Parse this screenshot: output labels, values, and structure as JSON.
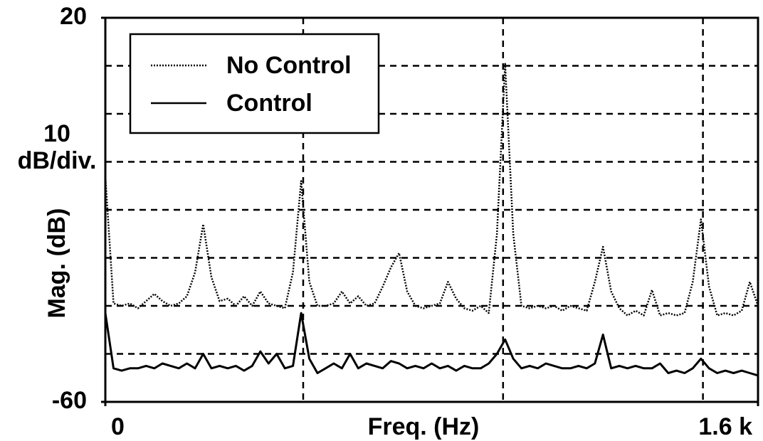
{
  "chart_data": {
    "type": "line",
    "xlabel": "Freq. (Hz)",
    "ylabel": "Mag. (dB)",
    "annotation": [
      "10",
      "dB/div."
    ],
    "xlim": [
      0,
      1600
    ],
    "xticks": [
      0,
      {
        "value": 1600,
        "label": "1.6 k"
      }
    ],
    "xgrid": [
      485,
      975,
      1465
    ],
    "ylim": [
      -60,
      20
    ],
    "yticks": [
      -60,
      20
    ],
    "ygrid": [
      -50,
      -40,
      -30,
      -20,
      -10,
      0,
      10
    ],
    "grid": true,
    "legend": "upper left",
    "x": [
      0,
      20,
      40,
      60,
      80,
      100,
      120,
      140,
      160,
      180,
      200,
      220,
      240,
      260,
      280,
      300,
      320,
      340,
      360,
      380,
      400,
      420,
      440,
      460,
      480,
      500,
      520,
      540,
      560,
      580,
      600,
      620,
      640,
      660,
      680,
      700,
      720,
      740,
      760,
      780,
      800,
      820,
      840,
      860,
      880,
      900,
      920,
      940,
      960,
      980,
      1000,
      1020,
      1040,
      1060,
      1080,
      1100,
      1120,
      1140,
      1160,
      1180,
      1200,
      1220,
      1240,
      1260,
      1280,
      1300,
      1320,
      1340,
      1360,
      1380,
      1400,
      1420,
      1440,
      1460,
      1480,
      1500,
      1520,
      1540,
      1560,
      1580,
      1600
    ],
    "series": [
      {
        "name": "No Control",
        "color": "#000000",
        "style": "dotted",
        "values": [
          -13,
          -39.5,
          -40,
          -39.5,
          -40.5,
          -39,
          -37.5,
          -39,
          -40,
          -39.5,
          -38,
          -33,
          -23,
          -34,
          -39,
          -38.5,
          -40,
          -38,
          -40,
          -37,
          -39.5,
          -40,
          -40.5,
          -33,
          -14,
          -35,
          -40,
          -40,
          -39.5,
          -37,
          -39.5,
          -38,
          -40,
          -39.5,
          -36,
          -32,
          -29,
          -37,
          -40,
          -40.5,
          -40,
          -39.5,
          -35,
          -38.5,
          -40.5,
          -41,
          -40,
          -41.5,
          -25,
          10.4,
          -25,
          -40,
          -40.5,
          -40,
          -40.5,
          -40,
          -41,
          -40,
          -40.5,
          -41,
          -35,
          -27.7,
          -37,
          -40.5,
          -42,
          -41,
          -42,
          -36.7,
          -42,
          -41.5,
          -42,
          -41.5,
          -35,
          -22,
          -36,
          -42,
          -41.5,
          -42,
          -41,
          -35,
          -40
        ]
      },
      {
        "name": "Control",
        "color": "#000000",
        "style": "solid",
        "values": [
          -41.5,
          -53,
          -53.5,
          -53,
          -53,
          -52.5,
          -53,
          -52,
          -52.5,
          -53,
          -52,
          -53,
          -50,
          -53,
          -52.5,
          -53,
          -52.5,
          -53.5,
          -52.5,
          -49.5,
          -52,
          -50,
          -53,
          -52.5,
          -41.5,
          -51,
          -54,
          -53,
          -52,
          -53,
          -50,
          -53,
          -52,
          -52.5,
          -53,
          -51.5,
          -52,
          -53,
          -52.5,
          -53,
          -52,
          -53,
          -52.5,
          -53.5,
          -52.5,
          -53,
          -53,
          -52,
          -50,
          -47,
          -51,
          -53,
          -52.5,
          -53,
          -52,
          -52.5,
          -53,
          -53,
          -52.5,
          -53,
          -52,
          -46,
          -53,
          -52.5,
          -53,
          -52.5,
          -53,
          -53,
          -52,
          -54,
          -53.5,
          -54,
          -53,
          -51,
          -53,
          -54,
          -53.5,
          -54,
          -53.5,
          -54,
          -54.5
        ]
      }
    ]
  }
}
